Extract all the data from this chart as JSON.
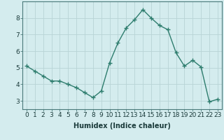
{
  "x": [
    0,
    1,
    2,
    3,
    4,
    5,
    6,
    7,
    8,
    9,
    10,
    11,
    12,
    13,
    14,
    15,
    16,
    17,
    18,
    19,
    20,
    21,
    22,
    23
  ],
  "y": [
    5.1,
    4.8,
    4.5,
    4.2,
    4.2,
    4.0,
    3.8,
    3.5,
    3.2,
    3.6,
    5.3,
    6.5,
    7.4,
    7.9,
    8.5,
    8.0,
    7.55,
    7.3,
    5.9,
    5.1,
    5.45,
    5.05,
    2.95,
    3.1
  ],
  "line_color": "#2e7d6e",
  "marker": "+",
  "markersize": 4,
  "linewidth": 1.0,
  "background_color": "#d4ecee",
  "grid_color": "#b8d4d6",
  "xlabel": "Humidex (Indice chaleur)",
  "xlabel_fontsize": 7,
  "tick_fontsize": 6.5,
  "xlim": [
    -0.5,
    23.5
  ],
  "ylim": [
    2.5,
    9.0
  ],
  "yticks": [
    3,
    4,
    5,
    6,
    7,
    8
  ],
  "xticks": [
    0,
    1,
    2,
    3,
    4,
    5,
    6,
    7,
    8,
    9,
    10,
    11,
    12,
    13,
    14,
    15,
    16,
    17,
    18,
    19,
    20,
    21,
    22,
    23
  ]
}
